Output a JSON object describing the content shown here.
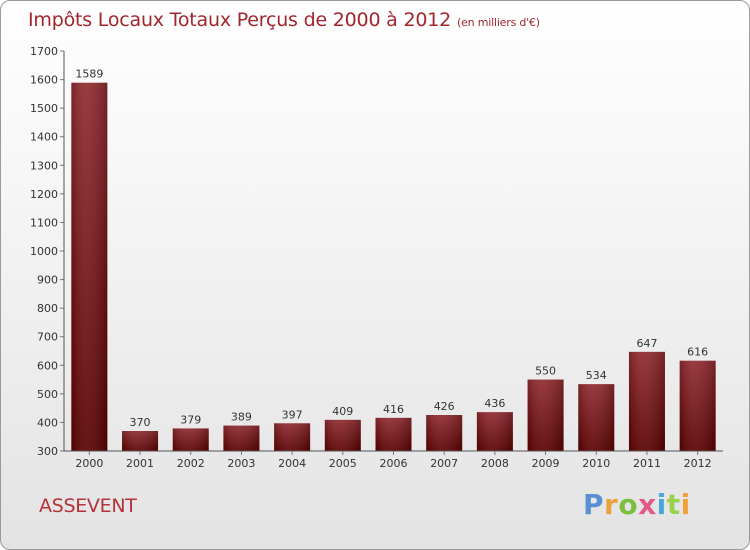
{
  "chart_data": {
    "type": "bar",
    "title": "Impôts Locaux Totaux Perçus de 2000 à 2012",
    "unit_note": "(en milliers d'€)",
    "categories": [
      "2000",
      "2001",
      "2002",
      "2003",
      "2004",
      "2005",
      "2006",
      "2007",
      "2008",
      "2009",
      "2010",
      "2011",
      "2012"
    ],
    "values": [
      1589,
      370,
      379,
      389,
      397,
      409,
      416,
      426,
      436,
      550,
      534,
      647,
      616
    ],
    "ylim": [
      300,
      1700
    ],
    "yticks": [
      300,
      400,
      500,
      600,
      700,
      800,
      900,
      1000,
      1100,
      1200,
      1300,
      1400,
      1500,
      1600,
      1700
    ],
    "bar_color": "#7a1418",
    "xlabel": "",
    "ylabel": ""
  },
  "commune": "ASSEVENT",
  "logo": {
    "p": "P",
    "r": "r",
    "o": "o",
    "x": "x",
    "i1": "i",
    "t": "t",
    "i2": "i"
  }
}
